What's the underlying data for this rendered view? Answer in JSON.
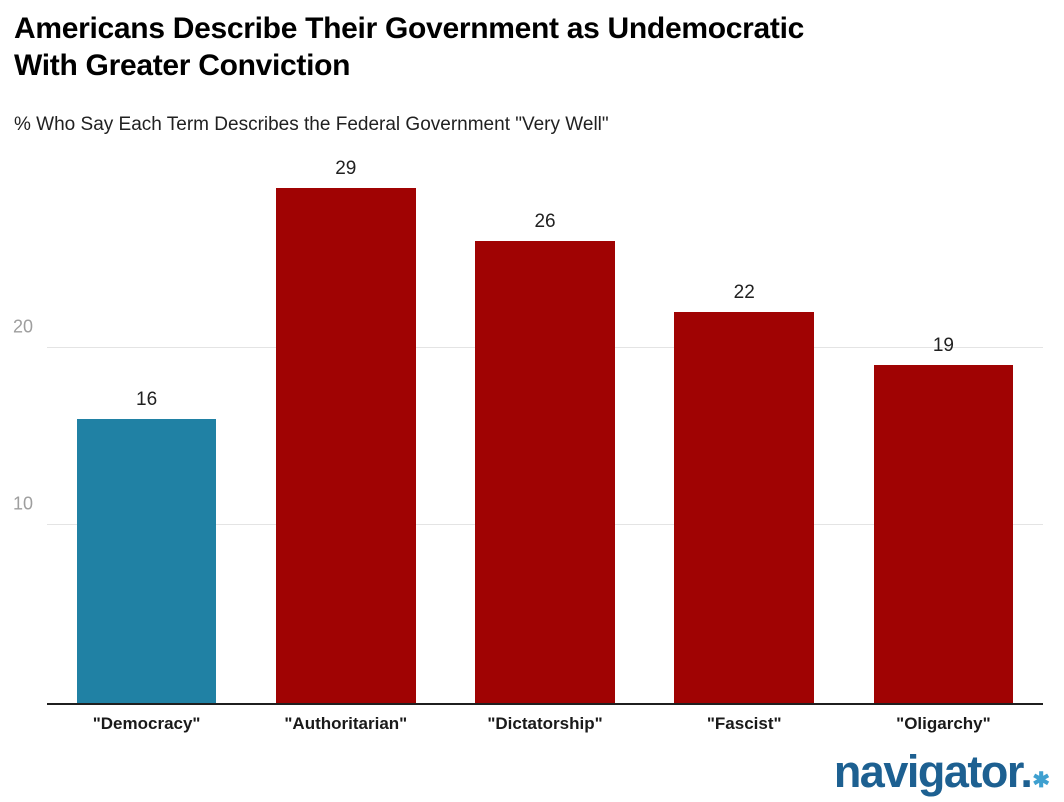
{
  "header": {
    "title_line1": "Americans Describe Their Government as Undemocratic",
    "title_line2": "With Greater Conviction",
    "subtitle": "% Who Say Each Term Describes the Federal Government \"Very Well\""
  },
  "chart_data": {
    "type": "bar",
    "title": "Americans Describe Their Government as Undemocratic With Greater Conviction",
    "subtitle": "% Who Say Each Term Describes the Federal Government \"Very Well\"",
    "categories": [
      "\"Democracy\"",
      "\"Authoritarian\"",
      "\"Dictatorship\"",
      "\"Fascist\"",
      "\"Oligarchy\""
    ],
    "values": [
      16,
      29,
      26,
      22,
      19
    ],
    "bar_colors": [
      "#2081A4",
      "#A00303",
      "#A00303",
      "#A00303",
      "#A00303"
    ],
    "xlabel": "",
    "ylabel": "",
    "ylim": [
      0,
      30
    ],
    "yticks": [
      10,
      20
    ],
    "grid": "horizontal-only",
    "legend": "none",
    "data_labels": "above-bars"
  },
  "branding": {
    "logo_text": "navigator.",
    "logo_mark": "✱"
  },
  "colors": {
    "highlight_bar": "#2081A4",
    "default_bar": "#A00303",
    "gridline": "#E4E4E4",
    "axis_line": "#1F1F1F",
    "tick_label": "#9E9E9E",
    "data_label": "#212121",
    "logo_blue": "#1D6091",
    "logo_mark_blue": "#3FA0D0"
  }
}
